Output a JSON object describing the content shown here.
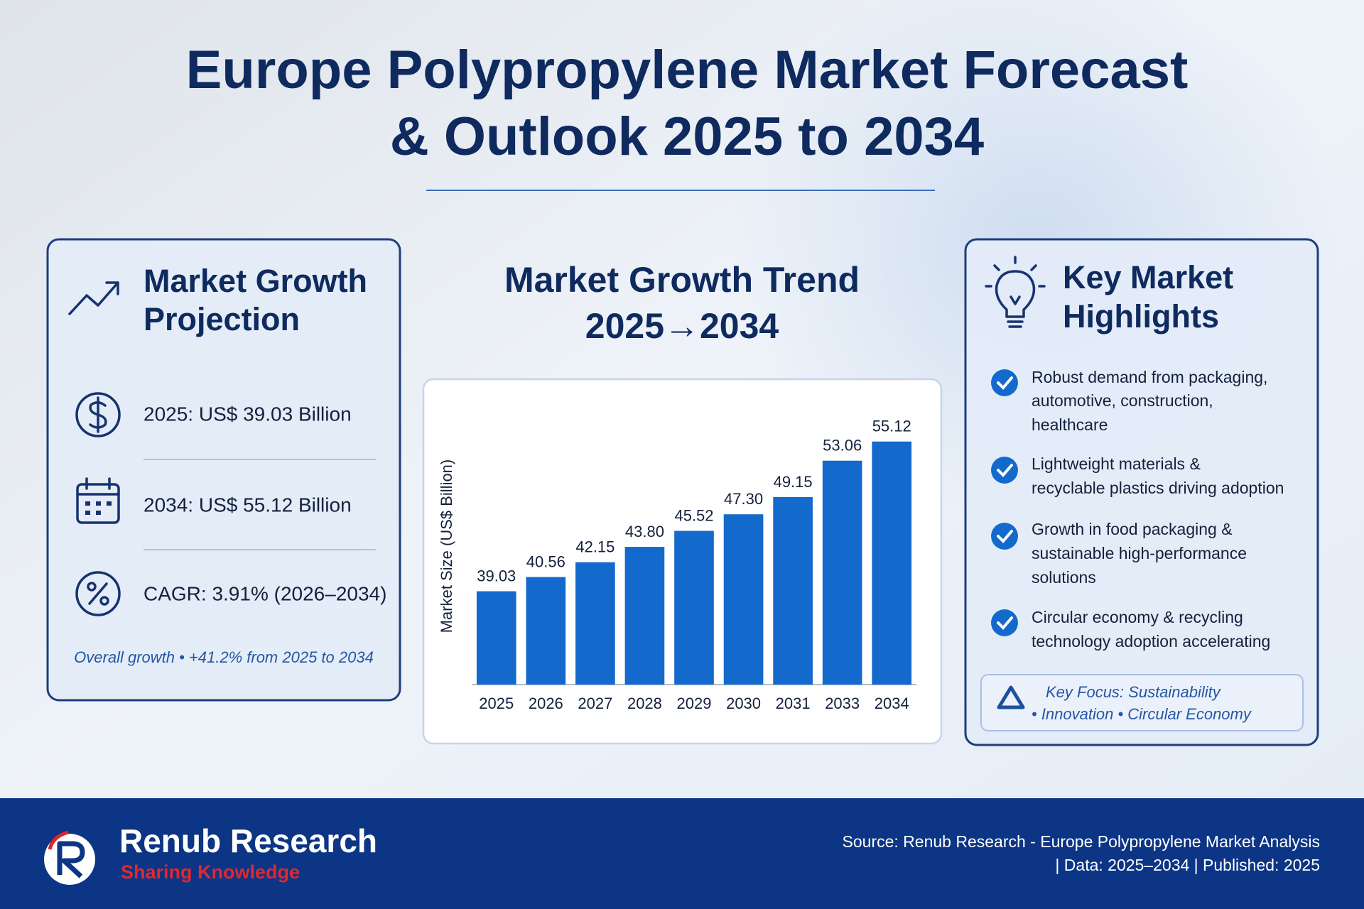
{
  "header": {
    "title_lines": [
      "Europe Polypropylene Market Forecast",
      "& Outlook 2025 to 2034"
    ]
  },
  "growth_panel": {
    "title_lines": [
      "Market Growth",
      "Projection"
    ],
    "items": [
      "2025: US$ 39.03 Billion",
      "2034: US$ 55.12 Billion",
      "CAGR: 3.91% (2026–2034)"
    ],
    "note": "Overall growth • +41.2% from 2025 to 2034"
  },
  "chart_data": {
    "type": "bar",
    "title": "Market Growth Trend",
    "subtitle": "2025→2034",
    "y_label": "Market Size (US$ Billion)",
    "categories": [
      "2025",
      "2026",
      "2027",
      "2028",
      "2029",
      "2030",
      "2031",
      "2033",
      "2034"
    ],
    "values": [
      39.03,
      40.56,
      42.15,
      43.8,
      45.52,
      47.3,
      49.15,
      53.06,
      55.12
    ],
    "value_labels": [
      "39.03",
      "40.56",
      "42.15",
      "43.80",
      "45.52",
      "47.30",
      "49.15",
      "53.06",
      "55.12"
    ],
    "color": "#1469cc",
    "ylim": [
      29,
      58
    ],
    "grid": false
  },
  "highlights_panel": {
    "title_lines": [
      "Key Market",
      "Highlights"
    ],
    "items": [
      [
        "Robust demand from packaging,",
        "automotive, construction,",
        "healthcare"
      ],
      [
        "Lightweight materials &",
        "recyclable plastics driving adoption"
      ],
      [
        "Growth in food packaging &",
        "sustainable high-performance",
        "solutions"
      ],
      [
        "Circular economy & recycling",
        "technology adoption accelerating"
      ]
    ],
    "focus_lines": [
      "Key Focus: Sustainability",
      "• Innovation • Circular Economy"
    ]
  },
  "footer": {
    "brand": "Renub Research",
    "tagline": "Sharing Knowledge",
    "source_lines": [
      "Source: Renub Research - Europe Polypropylene Market Analysis",
      "| Data: 2025–2034 | Published: 2025"
    ]
  }
}
